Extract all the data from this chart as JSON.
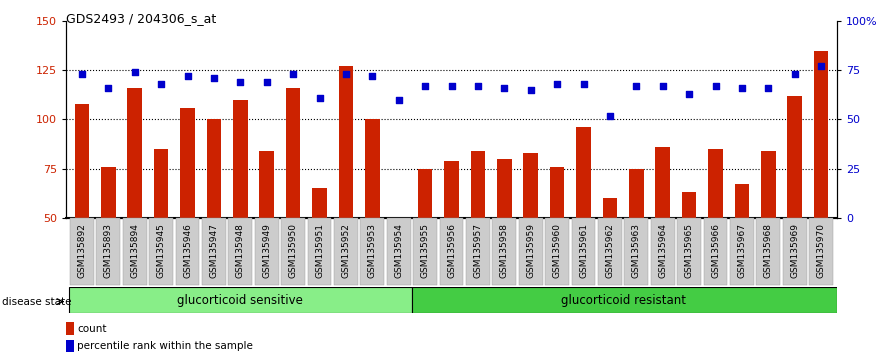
{
  "title": "GDS2493 / 204306_s_at",
  "samples": [
    "GSM135892",
    "GSM135893",
    "GSM135894",
    "GSM135945",
    "GSM135946",
    "GSM135947",
    "GSM135948",
    "GSM135949",
    "GSM135950",
    "GSM135951",
    "GSM135952",
    "GSM135953",
    "GSM135954",
    "GSM135955",
    "GSM135956",
    "GSM135957",
    "GSM135958",
    "GSM135959",
    "GSM135960",
    "GSM135961",
    "GSM135962",
    "GSM135963",
    "GSM135964",
    "GSM135965",
    "GSM135966",
    "GSM135967",
    "GSM135968",
    "GSM135969",
    "GSM135970"
  ],
  "bar_values": [
    108,
    76,
    116,
    85,
    106,
    100,
    110,
    84,
    116,
    65,
    127,
    100,
    50,
    75,
    79,
    84,
    80,
    83,
    76,
    96,
    60,
    75,
    86,
    63,
    85,
    67,
    84,
    112,
    135
  ],
  "pct_values": [
    73,
    66,
    74,
    68,
    72,
    71,
    69,
    69,
    73,
    61,
    73,
    72,
    60,
    67,
    67,
    67,
    66,
    65,
    68,
    68,
    52,
    67,
    67,
    63,
    67,
    66,
    66,
    73,
    77
  ],
  "group1_label": "glucorticoid sensitive",
  "group2_label": "glucorticoid resistant",
  "group1_count": 13,
  "ylim_left": [
    50,
    150
  ],
  "ylim_right": [
    0,
    100
  ],
  "yticks_left": [
    50,
    75,
    100,
    125,
    150
  ],
  "yticks_right": [
    0,
    25,
    50,
    75,
    100
  ],
  "ytick_labels_right": [
    "0",
    "25",
    "50",
    "75",
    "100%"
  ],
  "bar_color": "#cc2200",
  "pct_color": "#0000cc",
  "group1_color": "#88ee88",
  "group2_color": "#44cc44",
  "label_bg_color": "#cccccc",
  "legend_count": "count",
  "legend_pct": "percentile rank within the sample",
  "grid_lines": [
    75,
    100,
    125
  ]
}
